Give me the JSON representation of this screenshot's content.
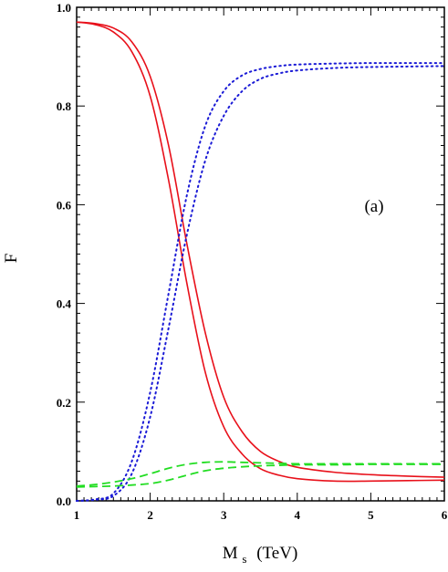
{
  "chart_data": {
    "type": "line",
    "xlabel": "M",
    "xlabel_sub": "s",
    "xlabel_unit": "(TeV)",
    "ylabel": "F",
    "annotation": "(a)",
    "xlim": [
      1,
      6
    ],
    "ylim": [
      0,
      1
    ],
    "xticks": [
      1,
      2,
      3,
      4,
      5,
      6
    ],
    "yticks": [
      0.0,
      0.2,
      0.4,
      0.6,
      0.8,
      1.0
    ],
    "ytick_labels": [
      "0.0",
      "0.2",
      "0.4",
      "0.6",
      "0.8",
      "1.0"
    ],
    "grid": false,
    "x": [
      1.0,
      1.25,
      1.5,
      1.75,
      2.0,
      2.25,
      2.5,
      2.75,
      3.0,
      3.25,
      3.5,
      3.75,
      4.0,
      4.5,
      5.0,
      5.5,
      6.0
    ],
    "series": [
      {
        "style": "solid",
        "color": "#e8101a",
        "values": [
          0.97,
          0.965,
          0.95,
          0.91,
          0.82,
          0.65,
          0.44,
          0.26,
          0.15,
          0.095,
          0.065,
          0.052,
          0.045,
          0.04,
          0.04,
          0.041,
          0.042
        ]
      },
      {
        "style": "solid",
        "color": "#e8101a",
        "values": [
          0.97,
          0.967,
          0.958,
          0.93,
          0.86,
          0.72,
          0.52,
          0.34,
          0.21,
          0.14,
          0.1,
          0.08,
          0.068,
          0.058,
          0.053,
          0.05,
          0.048
        ]
      },
      {
        "style": "dotted",
        "color": "#1a1ad6",
        "values": [
          0.0,
          0.003,
          0.015,
          0.08,
          0.22,
          0.42,
          0.62,
          0.76,
          0.83,
          0.862,
          0.875,
          0.881,
          0.884,
          0.886,
          0.887,
          0.887,
          0.887
        ]
      },
      {
        "style": "dotted",
        "color": "#1a1ad6",
        "values": [
          0.0,
          0.002,
          0.01,
          0.055,
          0.17,
          0.35,
          0.54,
          0.69,
          0.78,
          0.83,
          0.855,
          0.866,
          0.872,
          0.877,
          0.879,
          0.88,
          0.881
        ]
      },
      {
        "style": "dashed",
        "color": "#22dd22",
        "values": [
          0.03,
          0.033,
          0.038,
          0.045,
          0.055,
          0.066,
          0.074,
          0.078,
          0.079,
          0.078,
          0.077,
          0.076,
          0.075,
          0.075,
          0.075,
          0.075,
          0.075
        ]
      },
      {
        "style": "dashed",
        "color": "#22dd22",
        "values": [
          0.028,
          0.029,
          0.03,
          0.032,
          0.035,
          0.042,
          0.052,
          0.061,
          0.066,
          0.069,
          0.071,
          0.072,
          0.073,
          0.073,
          0.074,
          0.074,
          0.074
        ]
      }
    ]
  }
}
